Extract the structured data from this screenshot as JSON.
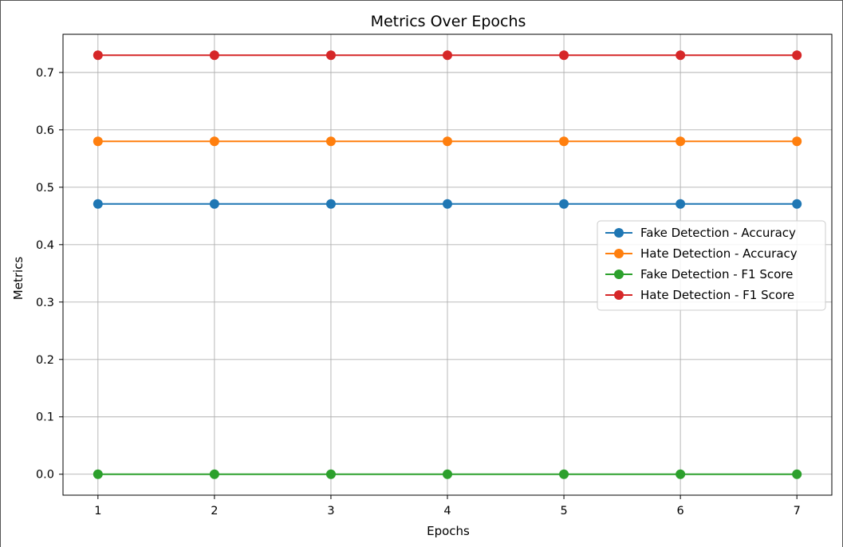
{
  "chart_data": {
    "type": "line",
    "title": "Metrics Over Epochs",
    "xlabel": "Epochs",
    "ylabel": "Metrics",
    "x": [
      1,
      2,
      3,
      4,
      5,
      6,
      7
    ],
    "xticks": [
      "1",
      "2",
      "3",
      "4",
      "5",
      "6",
      "7"
    ],
    "yticks": [
      "0.0",
      "0.1",
      "0.2",
      "0.3",
      "0.4",
      "0.5",
      "0.6",
      "0.7"
    ],
    "xlim": [
      0.7,
      7.3
    ],
    "ylim": [
      -0.0365,
      0.7665
    ],
    "grid": true,
    "legend_position": "center-right",
    "marker": "circle",
    "series": [
      {
        "name": "Fake Detection - Accuracy",
        "color": "#1f77b4",
        "values": [
          0.471,
          0.471,
          0.471,
          0.471,
          0.471,
          0.471,
          0.471
        ]
      },
      {
        "name": "Hate Detection - Accuracy",
        "color": "#ff7f0e",
        "values": [
          0.58,
          0.58,
          0.58,
          0.58,
          0.58,
          0.58,
          0.58
        ]
      },
      {
        "name": "Fake Detection - F1 Score",
        "color": "#2ca02c",
        "values": [
          0.0,
          0.0,
          0.0,
          0.0,
          0.0,
          0.0,
          0.0
        ]
      },
      {
        "name": "Hate Detection - F1 Score",
        "color": "#d62728",
        "values": [
          0.73,
          0.73,
          0.73,
          0.73,
          0.73,
          0.73,
          0.73
        ]
      }
    ]
  }
}
